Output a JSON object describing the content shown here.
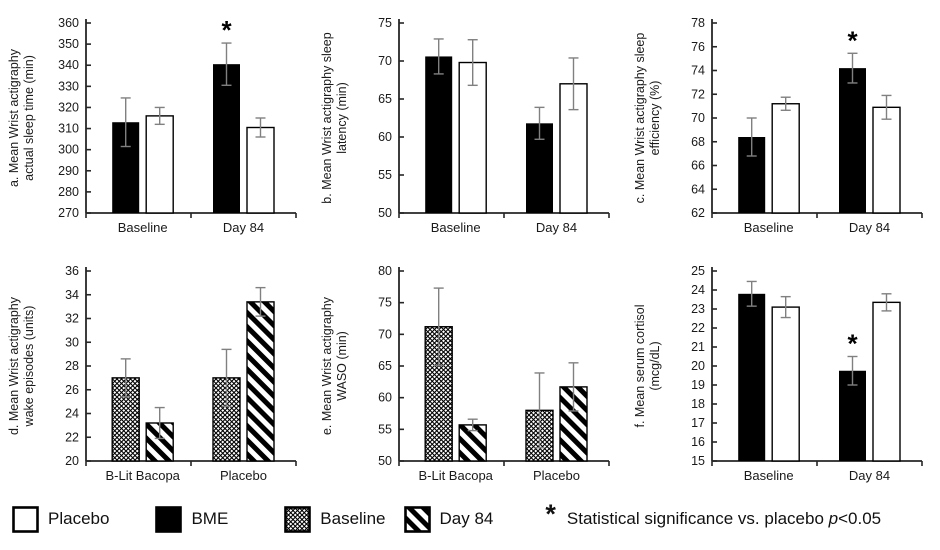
{
  "figure": {
    "background": "#ffffff"
  },
  "colors": {
    "bar_black": "#000000",
    "bar_white": "#ffffff",
    "bar_stroke": "#000000",
    "error_bar": "#808080",
    "axis": "#262626",
    "text": "#1a1a1a"
  },
  "legend": {
    "items": [
      {
        "label": "Placebo",
        "style": "white"
      },
      {
        "label": "BME",
        "style": "black"
      },
      {
        "label": "Baseline",
        "style": "crosshatch"
      },
      {
        "label": "Day 84",
        "style": "diagonal"
      }
    ],
    "sig_symbol": "*",
    "sig_text_prefix": "Statistical significance vs. placebo ",
    "sig_text_italic": "p",
    "sig_text_suffix": "<0.05"
  },
  "chart_data": [
    {
      "type": "bar",
      "panel": "a",
      "ylabel_lines": [
        "a. Mean Wrist actigraphy",
        "actual sleep time (min)"
      ],
      "ylim": [
        270,
        360
      ],
      "ytick_step": 10,
      "categories": [
        "Baseline",
        "Day 84"
      ],
      "series": [
        {
          "name": "BME",
          "style": "black",
          "values": [
            313,
            340.5
          ],
          "errors": [
            11.5,
            10
          ],
          "sig": [
            false,
            true
          ]
        },
        {
          "name": "Placebo",
          "style": "white",
          "values": [
            316,
            310.5
          ],
          "errors": [
            4,
            4.5
          ],
          "sig": [
            false,
            false
          ]
        }
      ]
    },
    {
      "type": "bar",
      "panel": "b",
      "ylabel_lines": [
        "b. Mean Wrist actigraphy sleep",
        "latency (min)"
      ],
      "ylim": [
        50,
        75
      ],
      "ytick_step": 5,
      "categories": [
        "Baseline",
        "Day 84"
      ],
      "series": [
        {
          "name": "BME",
          "style": "black",
          "values": [
            70.6,
            61.8
          ],
          "errors": [
            2.3,
            2.1
          ],
          "sig": [
            false,
            false
          ]
        },
        {
          "name": "Placebo",
          "style": "white",
          "values": [
            69.8,
            67
          ],
          "errors": [
            3,
            3.4
          ],
          "sig": [
            false,
            false
          ]
        }
      ]
    },
    {
      "type": "bar",
      "panel": "c",
      "ylabel_lines": [
        "c. Mean Wrist actigraphy sleep",
        "efficiency (%)"
      ],
      "ylim": [
        62,
        78
      ],
      "ytick_step": 2,
      "categories": [
        "Baseline",
        "Day 84"
      ],
      "series": [
        {
          "name": "BME",
          "style": "black",
          "values": [
            68.4,
            74.2
          ],
          "errors": [
            1.6,
            1.25
          ],
          "sig": [
            false,
            true
          ]
        },
        {
          "name": "Placebo",
          "style": "white",
          "values": [
            71.2,
            70.9
          ],
          "errors": [
            0.55,
            1
          ],
          "sig": [
            false,
            false
          ]
        }
      ]
    },
    {
      "type": "bar",
      "panel": "d",
      "ylabel_lines": [
        "d. Mean Wrist actigraphy",
        "wake episodes (units)"
      ],
      "ylim": [
        20,
        36
      ],
      "ytick_step": 2,
      "categories": [
        "B-Lit Bacopa",
        "Placebo"
      ],
      "series": [
        {
          "name": "Baseline",
          "style": "crosshatch",
          "values": [
            27,
            27
          ],
          "errors": [
            1.6,
            2.4
          ],
          "sig": [
            false,
            false
          ]
        },
        {
          "name": "Day 84",
          "style": "diagonal",
          "values": [
            23.2,
            33.4
          ],
          "errors": [
            1.3,
            1.2
          ],
          "sig": [
            false,
            false
          ]
        }
      ]
    },
    {
      "type": "bar",
      "panel": "e",
      "ylabel_lines": [
        "e. Mean Wrist actigraphy",
        "WASO (min)"
      ],
      "ylim": [
        50,
        80
      ],
      "ytick_step": 5,
      "categories": [
        "B-Lit Bacopa",
        "Placebo"
      ],
      "series": [
        {
          "name": "Baseline",
          "style": "crosshatch",
          "values": [
            71.2,
            58
          ],
          "errors": [
            6.1,
            5.9
          ],
          "sig": [
            false,
            false
          ]
        },
        {
          "name": "Day 84",
          "style": "diagonal",
          "values": [
            55.7,
            61.7
          ],
          "errors": [
            0.9,
            3.8
          ],
          "sig": [
            false,
            false
          ]
        }
      ]
    },
    {
      "type": "bar",
      "panel": "f",
      "ylabel_lines": [
        "f. Mean serum cortisol",
        "(mcg/dL)"
      ],
      "ylim": [
        15,
        25
      ],
      "ytick_step": 1,
      "categories": [
        "Baseline",
        "Day 84"
      ],
      "series": [
        {
          "name": "BME",
          "style": "black",
          "values": [
            23.8,
            19.75
          ],
          "errors": [
            0.65,
            0.75
          ],
          "sig": [
            false,
            true
          ]
        },
        {
          "name": "Placebo",
          "style": "white",
          "values": [
            23.1,
            23.35
          ],
          "errors": [
            0.55,
            0.45
          ],
          "sig": [
            false,
            false
          ]
        }
      ]
    }
  ]
}
